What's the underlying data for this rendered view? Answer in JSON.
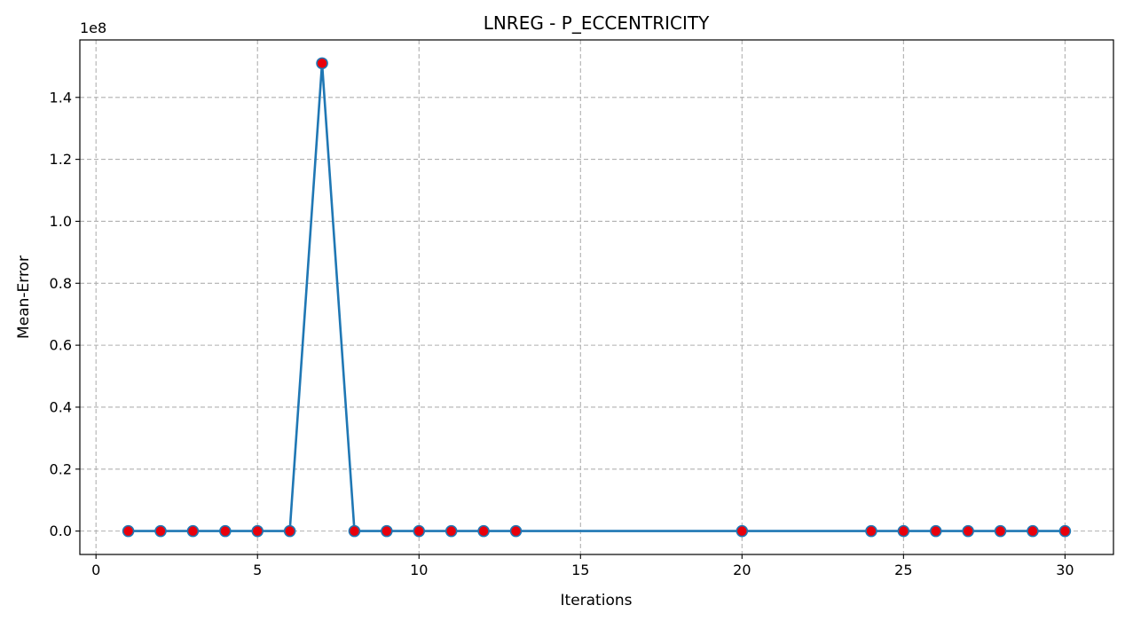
{
  "chart_data": {
    "type": "line",
    "title": "LNREG - P_ECCENTRICITY",
    "xlabel": "Iterations",
    "ylabel": "Mean-Error",
    "y_offset_label": "1e8",
    "xlim": [
      -0.5,
      31.5
    ],
    "ylim": [
      -0.0755,
      1.5855
    ],
    "x_ticks": [
      0,
      5,
      10,
      15,
      20,
      25,
      30
    ],
    "x_tick_labels": [
      "0",
      "5",
      "10",
      "15",
      "20",
      "25",
      "30"
    ],
    "y_ticks": [
      0.0,
      0.2,
      0.4,
      0.6,
      0.8,
      1.0,
      1.2,
      1.4
    ],
    "y_tick_labels": [
      "0.0",
      "0.2",
      "0.4",
      "0.6",
      "0.8",
      "1.0",
      "1.2",
      "1.4"
    ],
    "grid": true,
    "series": [
      {
        "x": [
          1,
          2,
          3,
          4,
          5,
          6,
          7,
          8,
          9,
          10,
          11,
          12,
          13,
          20,
          24,
          25,
          26,
          27,
          28,
          29,
          30
        ],
        "values": [
          0,
          0,
          0,
          0,
          0,
          0,
          1.51,
          0,
          0,
          0,
          0,
          0,
          0,
          0,
          0,
          0,
          0,
          0,
          0,
          0,
          0
        ],
        "line_color": "#1f77b4",
        "marker_face_color": "#e8000b",
        "marker_edge_color": "#1f77b4"
      }
    ]
  }
}
